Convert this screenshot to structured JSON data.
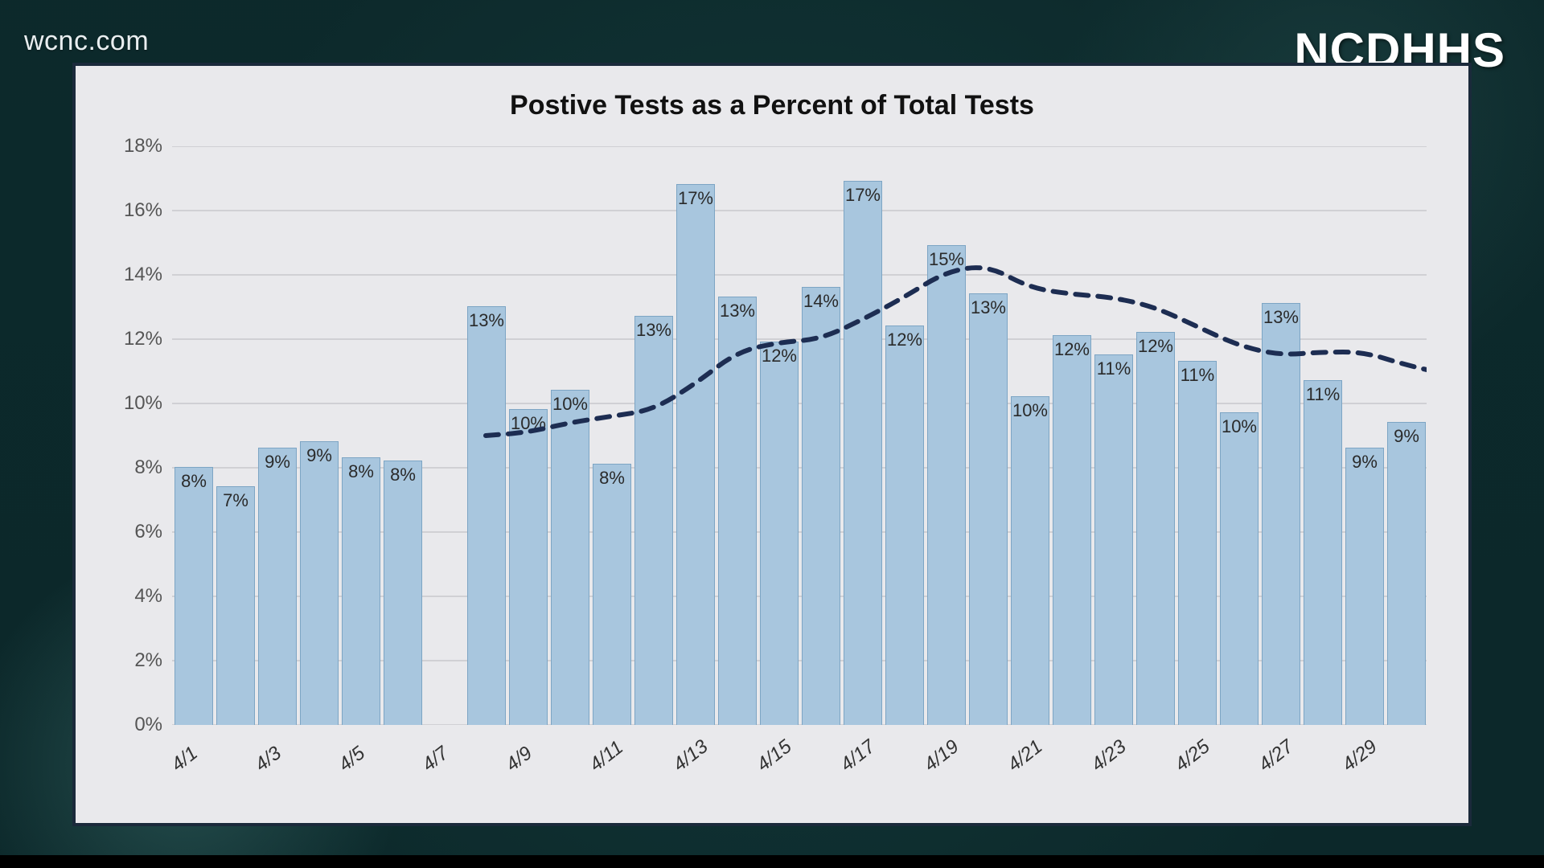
{
  "watermark": "wcnc.com",
  "attribution": "NCDHHS",
  "chart": {
    "type": "bar+line",
    "title": "Postive Tests as a Percent of Total Tests",
    "title_fontsize": 34,
    "title_color": "#111111",
    "background_color": "#e9e9ec",
    "card_border_color": "#1b2a3b",
    "bar_color": "#a8c6de",
    "bar_border_color": "#7da5c4",
    "bar_label_color": "#2a2a2a",
    "bar_label_fontsize": 22,
    "grid_color": "#b8b8bc",
    "axis_label_color": "#555555",
    "axis_label_fontsize": 24,
    "x_tick_fontsize": 24,
    "x_tick_color": "#333333",
    "x_tick_rotation_deg": -38,
    "x_tick_fontstyle": "italic",
    "line_color": "#1d2d52",
    "line_width": 6,
    "line_dash": "16 12",
    "ylim": [
      0,
      18
    ],
    "ytick_step": 2,
    "y_ticks": [
      "0%",
      "2%",
      "4%",
      "6%",
      "8%",
      "10%",
      "12%",
      "14%",
      "16%",
      "18%"
    ],
    "bar_gap_ratio": 0.12,
    "x_tick_labels": [
      "4/1",
      "4/3",
      "4/5",
      "4/7",
      "4/9",
      "4/11",
      "4/13",
      "4/15",
      "4/17",
      "4/19",
      "4/21",
      "4/23",
      "4/25",
      "4/27",
      "4/29"
    ],
    "bars": [
      {
        "date": "4/1",
        "value": 8.0,
        "label": "8%"
      },
      {
        "date": "4/2",
        "value": 7.4,
        "label": "7%"
      },
      {
        "date": "4/3",
        "value": 8.6,
        "label": "9%"
      },
      {
        "date": "4/4",
        "value": 8.8,
        "label": "9%"
      },
      {
        "date": "4/5",
        "value": 8.3,
        "label": "8%"
      },
      {
        "date": "4/6",
        "value": 8.2,
        "label": "8%"
      },
      {
        "date": "4/7",
        "value": null,
        "label": ""
      },
      {
        "date": "4/8",
        "value": 13.0,
        "label": "13%"
      },
      {
        "date": "4/9",
        "value": 9.8,
        "label": "10%"
      },
      {
        "date": "4/10",
        "value": 10.4,
        "label": "10%"
      },
      {
        "date": "4/11",
        "value": 8.1,
        "label": "8%"
      },
      {
        "date": "4/12",
        "value": 12.7,
        "label": "13%"
      },
      {
        "date": "4/13",
        "value": 16.8,
        "label": "17%"
      },
      {
        "date": "4/14",
        "value": 13.3,
        "label": "13%"
      },
      {
        "date": "4/15",
        "value": 11.9,
        "label": "12%"
      },
      {
        "date": "4/16",
        "value": 13.6,
        "label": "14%"
      },
      {
        "date": "4/17",
        "value": 16.9,
        "label": "17%"
      },
      {
        "date": "4/18",
        "value": 12.4,
        "label": "12%"
      },
      {
        "date": "4/19",
        "value": 14.9,
        "label": "15%"
      },
      {
        "date": "4/20",
        "value": 13.4,
        "label": "13%"
      },
      {
        "date": "4/21",
        "value": 10.2,
        "label": "10%"
      },
      {
        "date": "4/22",
        "value": 12.1,
        "label": "12%"
      },
      {
        "date": "4/23",
        "value": 11.5,
        "label": "11%"
      },
      {
        "date": "4/24",
        "value": 12.2,
        "label": "12%"
      },
      {
        "date": "4/25",
        "value": 11.3,
        "label": "11%"
      },
      {
        "date": "4/26",
        "value": 9.7,
        "label": "10%"
      },
      {
        "date": "4/27",
        "value": 13.1,
        "label": "13%"
      },
      {
        "date": "4/28",
        "value": 10.7,
        "label": "11%"
      },
      {
        "date": "4/29",
        "value": 8.6,
        "label": "9%"
      },
      {
        "date": "4/30",
        "value": 9.4,
        "label": "9%"
      }
    ],
    "trend_points": [
      {
        "x": 7,
        "y": 9.0
      },
      {
        "x": 8,
        "y": 9.1
      },
      {
        "x": 9,
        "y": 9.4
      },
      {
        "x": 10,
        "y": 9.6
      },
      {
        "x": 11,
        "y": 9.8
      },
      {
        "x": 12,
        "y": 10.6
      },
      {
        "x": 13,
        "y": 11.6
      },
      {
        "x": 14,
        "y": 11.9
      },
      {
        "x": 15,
        "y": 12.0
      },
      {
        "x": 16,
        "y": 12.6
      },
      {
        "x": 17,
        "y": 13.3
      },
      {
        "x": 18,
        "y": 14.1
      },
      {
        "x": 19,
        "y": 14.3
      },
      {
        "x": 20,
        "y": 13.6
      },
      {
        "x": 21,
        "y": 13.4
      },
      {
        "x": 22,
        "y": 13.3
      },
      {
        "x": 23,
        "y": 13.0
      },
      {
        "x": 24,
        "y": 12.4
      },
      {
        "x": 25,
        "y": 11.8
      },
      {
        "x": 26,
        "y": 11.5
      },
      {
        "x": 27,
        "y": 11.6
      },
      {
        "x": 28,
        "y": 11.6
      },
      {
        "x": 29,
        "y": 11.2
      },
      {
        "x": 30,
        "y": 10.9
      }
    ]
  }
}
